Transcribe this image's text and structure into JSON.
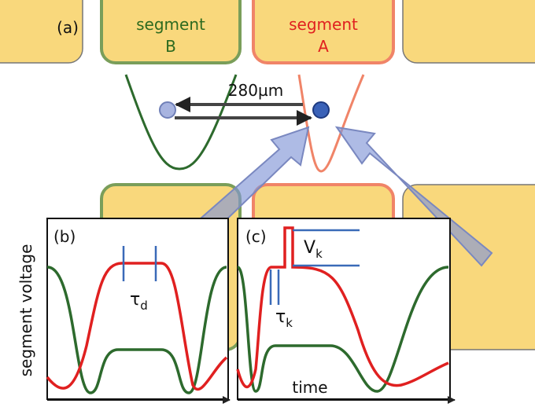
{
  "panel_a": {
    "label": "(a)",
    "segments": [
      {
        "lines": [
          "segment",
          "B"
        ]
      },
      {
        "lines": [
          "segment",
          "A"
        ]
      }
    ],
    "distance": "280µm"
  },
  "panel_b": {
    "label": "(b)",
    "tau": {
      "symbol": "τ",
      "subscript": "d"
    }
  },
  "panel_c": {
    "label": "(c)",
    "voltage": {
      "symbol": "V",
      "subscript": "k"
    },
    "tau": {
      "symbol": "τ",
      "subscript": "k"
    }
  },
  "y_axis_label": "segment voltage",
  "x_axis_label": "time"
}
